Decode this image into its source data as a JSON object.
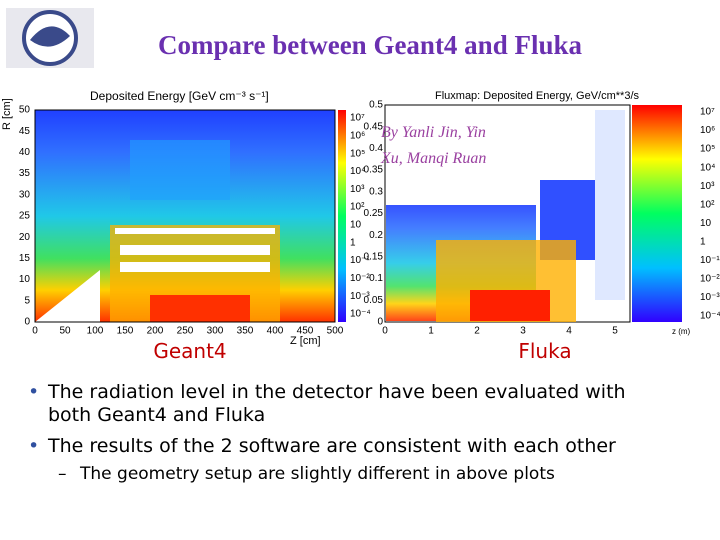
{
  "header": {
    "title": "Compare between Geant4 and Fluka"
  },
  "plots": [
    {
      "caption": "Geant4",
      "heading": "Deposited Energy [GeV cm⁻³ s⁻¹]",
      "y_label": "R [cm]",
      "x_label": "Z [cm]",
      "y_ticks": [
        "50",
        "45",
        "40",
        "35",
        "30",
        "25",
        "20",
        "15",
        "10",
        "5",
        "0"
      ],
      "x_ticks": [
        "0",
        "50",
        "100",
        "150",
        "200",
        "250",
        "300",
        "350",
        "400",
        "450",
        "500"
      ],
      "color_ticks": [
        "10⁷",
        "10⁶",
        "10⁵",
        "10⁴",
        "10³",
        "10²",
        "10",
        "1",
        "10⁻¹",
        "10⁻²",
        "10⁻³",
        "10⁻⁴"
      ]
    },
    {
      "caption": "Fluka",
      "heading": "Fluxmap: Deposited Energy, GeV/cm**3/s",
      "x_label": "z (m)",
      "y_ticks": [
        "0.5",
        "0.45",
        "0.4",
        "0.35",
        "0.3",
        "0.25",
        "0.2",
        "0.15",
        "0.1",
        "0.05",
        "0"
      ],
      "x_ticks": [
        "0",
        "1",
        "2",
        "3",
        "4",
        "5"
      ],
      "color_ticks": [
        "10⁷",
        "10⁶",
        "10⁵",
        "10⁴",
        "10³",
        "10²",
        "10",
        "1",
        "10⁻¹",
        "10⁻²",
        "10⁻³",
        "10⁻⁴"
      ]
    }
  ],
  "annotation": {
    "line1": "By Yanli Jin, Yin",
    "line2": "Xu, Manqi Ruan"
  },
  "bullets": [
    {
      "text": "The radiation level in the detector have been evaluated with",
      "cont": "both Geant4 and Fluka"
    },
    {
      "text": "The results of the 2 software are consistent with each other"
    }
  ],
  "sub_bullet": "The geometry setup are slightly different in above plots"
}
